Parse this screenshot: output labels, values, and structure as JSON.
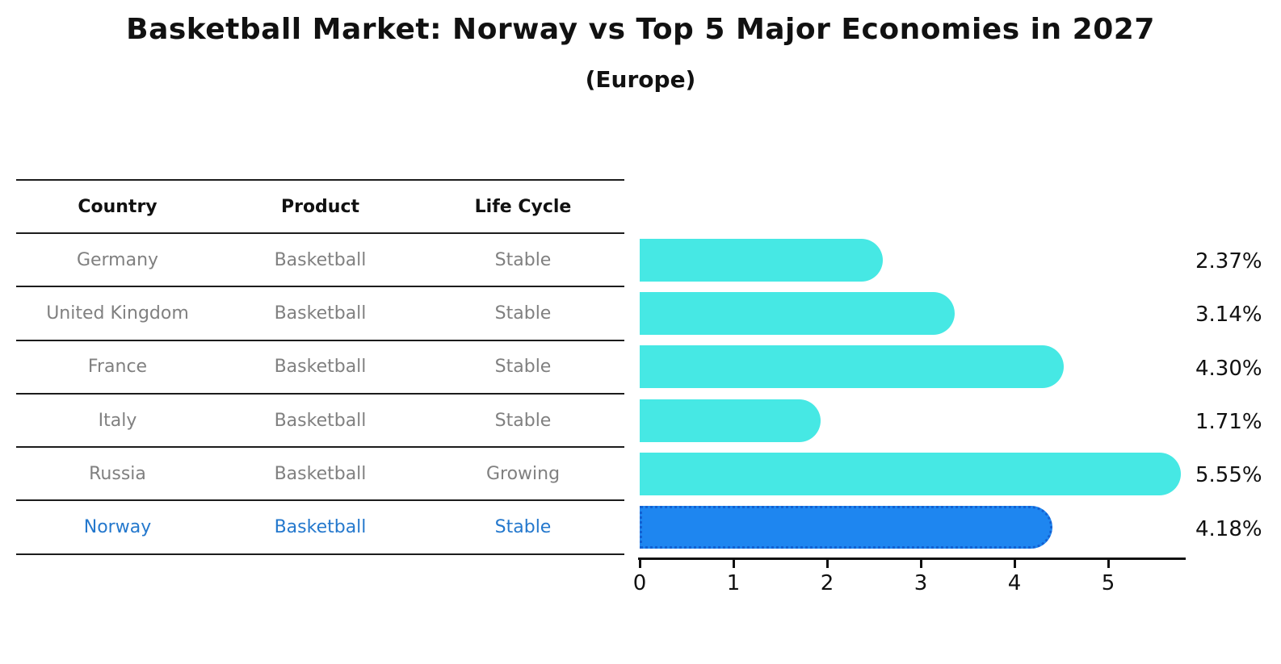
{
  "header": {
    "title": "Basketball Market: Norway vs Top 5 Major Economies in 2027",
    "subtitle": "(Europe)"
  },
  "table": {
    "headers": [
      "Country",
      "Product",
      "Life Cycle"
    ],
    "rows": [
      {
        "country": "Germany",
        "product": "Basketball",
        "life_cycle": "Stable",
        "highlight": false
      },
      {
        "country": "United Kingdom",
        "product": "Basketball",
        "life_cycle": "Stable",
        "highlight": false
      },
      {
        "country": "France",
        "product": "Basketball",
        "life_cycle": "Stable",
        "highlight": false
      },
      {
        "country": "Italy",
        "product": "Basketball",
        "life_cycle": "Stable",
        "highlight": false
      },
      {
        "country": "Russia",
        "product": "Basketball",
        "life_cycle": "Growing",
        "highlight": false
      },
      {
        "country": "Norway",
        "product": "Basketball",
        "life_cycle": "Stable",
        "highlight": true
      }
    ]
  },
  "chart_data": {
    "type": "bar",
    "orientation": "horizontal",
    "title": "Basketball Market: Norway vs Top 5 Major Economies in 2027",
    "subtitle": "(Europe)",
    "categories": [
      "Germany",
      "United Kingdom",
      "France",
      "Italy",
      "Russia",
      "Norway"
    ],
    "values": [
      2.37,
      3.14,
      4.3,
      1.71,
      5.55,
      4.18
    ],
    "value_labels": [
      "2.37%",
      "3.14%",
      "4.30%",
      "1.71%",
      "5.55%",
      "4.18%"
    ],
    "xticks": [
      0,
      1,
      2,
      3,
      4,
      5
    ],
    "xlim": [
      0,
      5.83
    ],
    "grid": false,
    "legend": "none",
    "highlight_category": "Norway",
    "colors": {
      "bar": "#46e8e4",
      "highlight_bar": "#1e86f0",
      "highlight_bar_border": "#1361d2",
      "highlight_text": "#2478cd",
      "row_text": "#808080",
      "header_text": "#111111",
      "axis": "#111111"
    }
  }
}
